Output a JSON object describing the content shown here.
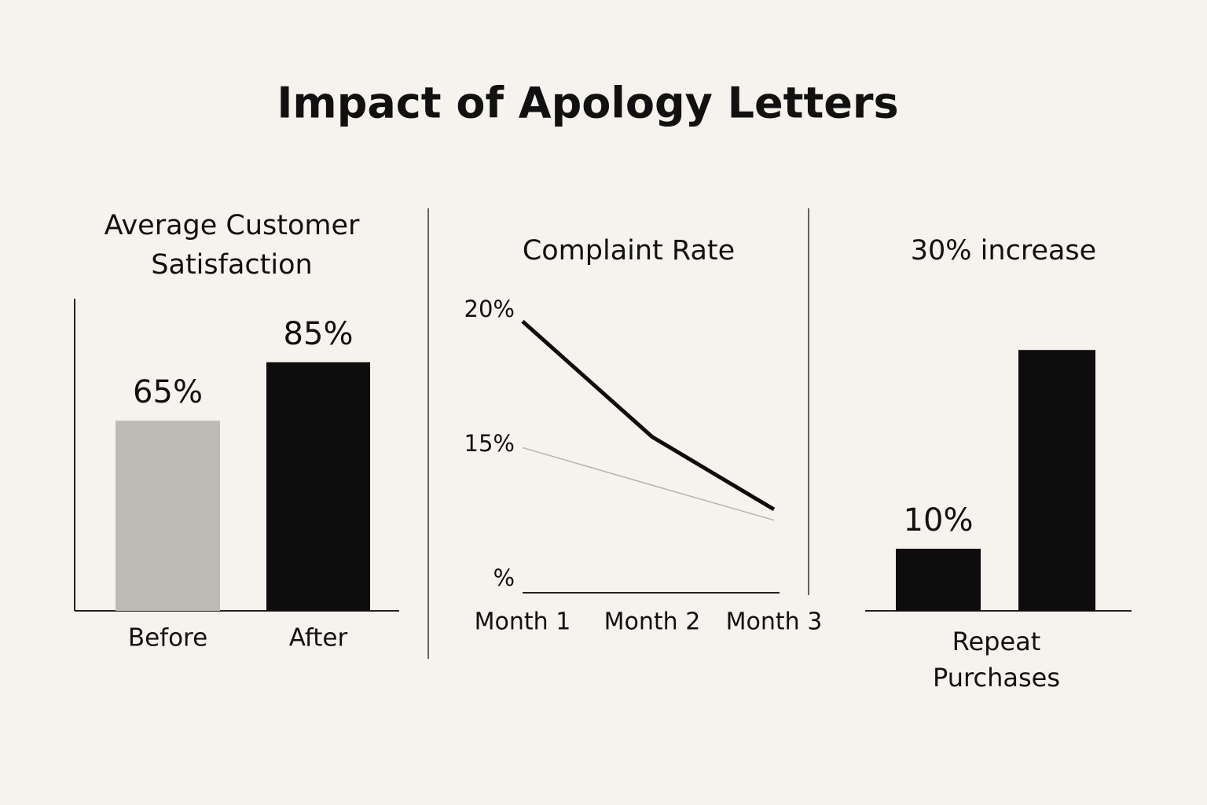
{
  "title": "Impact of Apology Letters",
  "chart_data": [
    {
      "type": "bar",
      "title": "Average Customer Satisfaction",
      "categories": [
        "Before",
        "After"
      ],
      "values": [
        65,
        85
      ],
      "value_labels": [
        "65%",
        "85%"
      ],
      "colors": [
        "#bdbab5",
        "#0d0d0d"
      ]
    },
    {
      "type": "line",
      "title": "Complaint Rate",
      "categories": [
        "Month 1",
        "Month 2",
        "Month 3"
      ],
      "series": [
        {
          "color": "#0d0d0d",
          "values": [
            19.6,
            15.3,
            12.6
          ]
        },
        {
          "color": "#b5b3b0",
          "values": [
            14.9,
            13.5,
            12.2
          ]
        }
      ],
      "ylim": [
        9.5,
        20.5
      ],
      "yticks": [
        {
          "value": 20,
          "label": "20%"
        },
        {
          "value": 15,
          "label": "15%"
        },
        {
          "value": 10,
          "label": "%"
        }
      ]
    },
    {
      "type": "bar",
      "title": "30% increase",
      "x_label": "Repeat Purchases",
      "values": [
        10,
        42
      ],
      "value_labels": [
        "10%",
        null
      ],
      "color": "#0d0d0d"
    }
  ]
}
